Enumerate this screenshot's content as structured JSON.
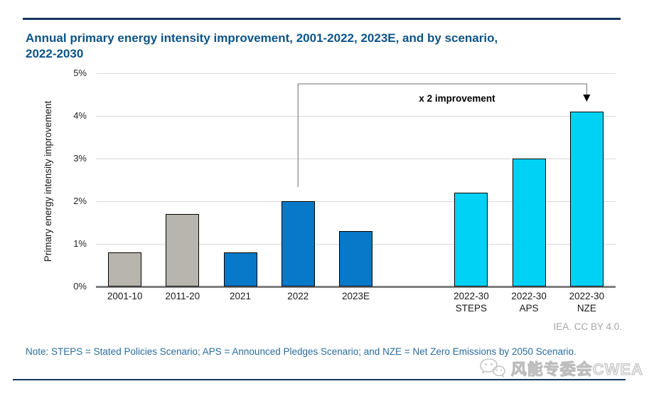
{
  "header": {
    "title_lines": [
      "Annual primary energy intensity improvement, 2001-2022, 2023E, and by scenario,",
      "2022-2030"
    ]
  },
  "chart_data": {
    "type": "bar",
    "title": "Annual primary energy intensity improvement, 2001-2022, 2023E, and by scenario, 2022-2030",
    "xlabel": "",
    "ylabel": "Primary energy intensity improvement",
    "ylim": [
      0,
      5
    ],
    "yticks": [
      "0%",
      "1%",
      "2%",
      "3%",
      "4%",
      "5%"
    ],
    "grid": true,
    "legend": "none",
    "categories": [
      "2001-10",
      "2011-20",
      "2021",
      "2022",
      "2023E",
      "",
      "2022-30\nSTEPS",
      "2022-30\nAPS",
      "2022-30\nNZE"
    ],
    "values": [
      0.8,
      1.7,
      0.8,
      2.0,
      1.3,
      null,
      2.2,
      3.0,
      4.1
    ],
    "bar_roles": [
      "historical",
      "historical",
      "recent",
      "recent",
      "recent",
      null,
      "scenario",
      "scenario",
      "scenario"
    ],
    "role_colors": {
      "historical": "#b8b5ae",
      "recent": "#0878c8",
      "scenario": "#00d2f5"
    },
    "bar_border_color": "#000000",
    "annotation": {
      "label": "x 2 improvement",
      "from_category": "2022",
      "to_category": "2022-30 NZE"
    }
  },
  "footer": {
    "attribution": "IEA. CC BY 4.0.",
    "note": "Note: STEPS = Stated Policies Scenario; APS = Announced Pledges Scenario; and NZE = Net Zero Emissions by 2050 Scenario.",
    "watermark": "风能专委会CWEA"
  }
}
